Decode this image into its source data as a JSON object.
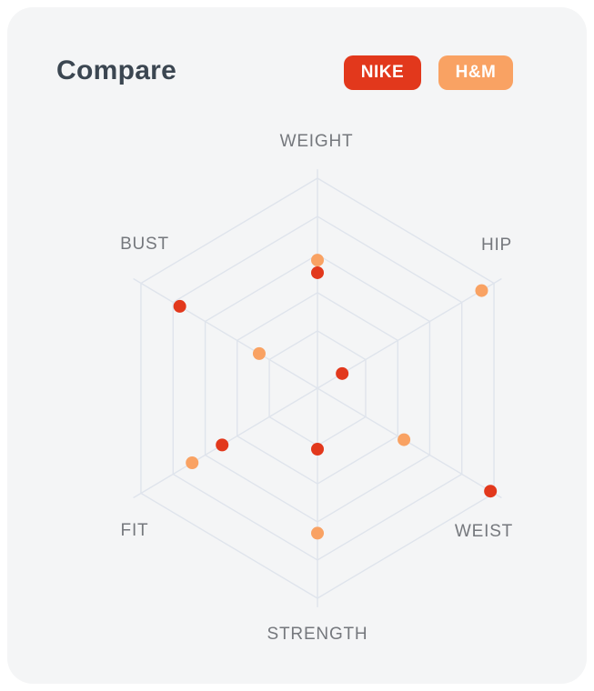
{
  "title": "Compare",
  "colors": {
    "page_bg": "#ffffff",
    "card_bg": "#f4f5f6",
    "title_text": "#3b4651",
    "axis_label_text": "#75787d",
    "grid_line": "#dfe4ec",
    "nike_red": "#e2381c",
    "hm_orange": "#f9a263"
  },
  "chart_data": {
    "type": "scatter",
    "subtype": "radar-dot-plot",
    "title": "Compare",
    "grid_shape": "hexagon-web",
    "categories": [
      "WEIGHT",
      "HIP",
      "WEIST",
      "STRENGTH",
      "FIT",
      "BUST"
    ],
    "axis_order": "clockwise-from-top",
    "series": [
      {
        "name": "NIKE",
        "color": "#e2381c",
        "values": [
          55,
          14,
          98,
          29,
          54,
          78
        ]
      },
      {
        "name": "H&M",
        "color": "#f9a263",
        "values": [
          61,
          93,
          49,
          69,
          71,
          33
        ]
      }
    ],
    "value_unit": "percent-of-axis-max",
    "axis_range": [
      0,
      100
    ],
    "grid_levels_pct": [
      27.3,
      45.5,
      63.6,
      81.8,
      100
    ],
    "legend_position": "top-right",
    "grid_on": true
  }
}
